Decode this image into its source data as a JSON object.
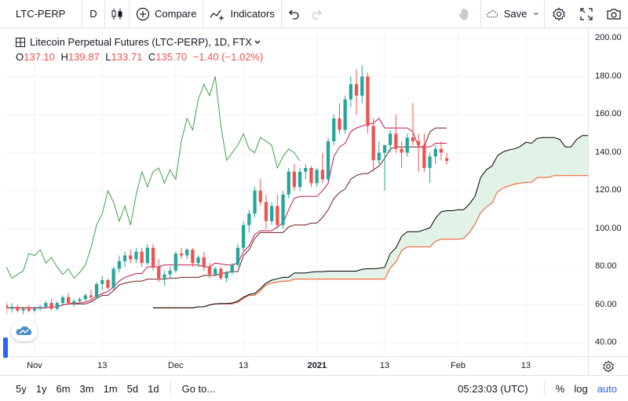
{
  "toolbar": {
    "symbol": "LTC-PERP",
    "interval": "D",
    "compare_label": "Compare",
    "indicators_label": "Indicators",
    "save_label": "Save",
    "icons": [
      "candles-icon",
      "plus-circle-icon",
      "indicators-icon",
      "undo-icon",
      "redo-icon",
      "hand-icon",
      "cloud-icon",
      "chevron-down-icon",
      "gear-icon",
      "fullscreen-icon",
      "camera-icon"
    ]
  },
  "legend": {
    "title": "Litecoin Perpetual Futures (LTC-PERP), 1D, FTX",
    "o_label": "O",
    "o_value": "137.10",
    "h_label": "H",
    "h_value": "139.87",
    "l_label": "L",
    "l_value": "133.71",
    "c_label": "C",
    "c_value": "135.70",
    "change": "−1.40 (−1.02%)"
  },
  "bottom_bar": {
    "ranges": [
      "5y",
      "1y",
      "6m",
      "3m",
      "1m",
      "5d",
      "1d"
    ],
    "goto_label": "Go to...",
    "clock": "05:23:03 (UTC)",
    "percent_label": "%",
    "log_label": "log",
    "auto_label": "auto"
  },
  "colors": {
    "up": "#26a69a",
    "down": "#ef5350",
    "lagging": "#43a047",
    "conversion": "#c2185b",
    "base": "#6d1a1a",
    "span_a": "#000000",
    "span_b": "#f4511e",
    "cloud_bull": "#e3f2e6",
    "cloud_bear": "#fde4e6",
    "accent": "#2962ff"
  },
  "chart_data": {
    "type": "candlestick",
    "indicator": "Ichimoku Cloud",
    "price_axis_ticks": [
      "40.00",
      "60.00",
      "80.00",
      "100.00",
      "120.00",
      "140.00",
      "160.00",
      "180.00",
      "200.00"
    ],
    "time_axis_ticks": [
      "Nov",
      "13",
      "Dec",
      "13",
      "2021",
      "13",
      "Feb",
      "13"
    ],
    "ylim": [
      33,
      205
    ],
    "x_range": [
      0,
      103
    ],
    "candles": [
      {
        "o": 60,
        "h": 62,
        "l": 55,
        "c": 58
      },
      {
        "o": 58,
        "h": 61,
        "l": 56,
        "c": 59
      },
      {
        "o": 59,
        "h": 60,
        "l": 56,
        "c": 57
      },
      {
        "o": 57,
        "h": 59,
        "l": 55,
        "c": 58
      },
      {
        "o": 58,
        "h": 60,
        "l": 56,
        "c": 57
      },
      {
        "o": 57,
        "h": 59,
        "l": 56,
        "c": 58
      },
      {
        "o": 58,
        "h": 60,
        "l": 57,
        "c": 59
      },
      {
        "o": 59,
        "h": 62,
        "l": 58,
        "c": 61
      },
      {
        "o": 61,
        "h": 63,
        "l": 57,
        "c": 58
      },
      {
        "o": 58,
        "h": 62,
        "l": 57,
        "c": 61
      },
      {
        "o": 61,
        "h": 65,
        "l": 60,
        "c": 64
      },
      {
        "o": 64,
        "h": 66,
        "l": 60,
        "c": 61
      },
      {
        "o": 61,
        "h": 63,
        "l": 59,
        "c": 62
      },
      {
        "o": 62,
        "h": 64,
        "l": 61,
        "c": 63
      },
      {
        "o": 63,
        "h": 66,
        "l": 62,
        "c": 65
      },
      {
        "o": 65,
        "h": 68,
        "l": 63,
        "c": 64
      },
      {
        "o": 64,
        "h": 72,
        "l": 63,
        "c": 71
      },
      {
        "o": 71,
        "h": 75,
        "l": 68,
        "c": 73
      },
      {
        "o": 73,
        "h": 74,
        "l": 68,
        "c": 69
      },
      {
        "o": 69,
        "h": 80,
        "l": 68,
        "c": 79
      },
      {
        "o": 79,
        "h": 86,
        "l": 77,
        "c": 83
      },
      {
        "o": 83,
        "h": 88,
        "l": 80,
        "c": 86
      },
      {
        "o": 86,
        "h": 89,
        "l": 82,
        "c": 84
      },
      {
        "o": 84,
        "h": 90,
        "l": 82,
        "c": 88
      },
      {
        "o": 88,
        "h": 90,
        "l": 80,
        "c": 82
      },
      {
        "o": 82,
        "h": 92,
        "l": 81,
        "c": 90
      },
      {
        "o": 90,
        "h": 92,
        "l": 78,
        "c": 80
      },
      {
        "o": 80,
        "h": 84,
        "l": 72,
        "c": 74
      },
      {
        "o": 74,
        "h": 78,
        "l": 70,
        "c": 76
      },
      {
        "o": 76,
        "h": 80,
        "l": 74,
        "c": 78
      },
      {
        "o": 78,
        "h": 88,
        "l": 77,
        "c": 87
      },
      {
        "o": 87,
        "h": 90,
        "l": 84,
        "c": 86
      },
      {
        "o": 86,
        "h": 90,
        "l": 84,
        "c": 89
      },
      {
        "o": 89,
        "h": 90,
        "l": 80,
        "c": 82
      },
      {
        "o": 82,
        "h": 86,
        "l": 80,
        "c": 85
      },
      {
        "o": 85,
        "h": 88,
        "l": 78,
        "c": 80
      },
      {
        "o": 80,
        "h": 82,
        "l": 74,
        "c": 76
      },
      {
        "o": 76,
        "h": 80,
        "l": 75,
        "c": 79
      },
      {
        "o": 79,
        "h": 80,
        "l": 73,
        "c": 74
      },
      {
        "o": 74,
        "h": 78,
        "l": 72,
        "c": 77
      },
      {
        "o": 77,
        "h": 82,
        "l": 76,
        "c": 81
      },
      {
        "o": 81,
        "h": 92,
        "l": 80,
        "c": 90
      },
      {
        "o": 90,
        "h": 104,
        "l": 88,
        "c": 102
      },
      {
        "o": 102,
        "h": 110,
        "l": 98,
        "c": 108
      },
      {
        "o": 108,
        "h": 122,
        "l": 106,
        "c": 120
      },
      {
        "o": 120,
        "h": 126,
        "l": 112,
        "c": 114
      },
      {
        "o": 114,
        "h": 118,
        "l": 100,
        "c": 104
      },
      {
        "o": 104,
        "h": 114,
        "l": 102,
        "c": 112
      },
      {
        "o": 112,
        "h": 118,
        "l": 100,
        "c": 102
      },
      {
        "o": 102,
        "h": 120,
        "l": 100,
        "c": 118
      },
      {
        "o": 118,
        "h": 132,
        "l": 116,
        "c": 130
      },
      {
        "o": 130,
        "h": 134,
        "l": 120,
        "c": 122
      },
      {
        "o": 122,
        "h": 132,
        "l": 120,
        "c": 130
      },
      {
        "o": 130,
        "h": 134,
        "l": 126,
        "c": 132
      },
      {
        "o": 132,
        "h": 133,
        "l": 122,
        "c": 124
      },
      {
        "o": 124,
        "h": 132,
        "l": 122,
        "c": 131
      },
      {
        "o": 131,
        "h": 140,
        "l": 124,
        "c": 126
      },
      {
        "o": 126,
        "h": 148,
        "l": 125,
        "c": 146
      },
      {
        "o": 146,
        "h": 160,
        "l": 144,
        "c": 158
      },
      {
        "o": 158,
        "h": 166,
        "l": 150,
        "c": 152
      },
      {
        "o": 152,
        "h": 170,
        "l": 150,
        "c": 168
      },
      {
        "o": 168,
        "h": 180,
        "l": 164,
        "c": 176
      },
      {
        "o": 176,
        "h": 184,
        "l": 160,
        "c": 170
      },
      {
        "o": 170,
        "h": 186,
        "l": 166,
        "c": 180
      },
      {
        "o": 180,
        "h": 182,
        "l": 150,
        "c": 154
      },
      {
        "o": 154,
        "h": 158,
        "l": 130,
        "c": 136
      },
      {
        "o": 136,
        "h": 146,
        "l": 134,
        "c": 140
      },
      {
        "o": 140,
        "h": 144,
        "l": 120,
        "c": 144
      },
      {
        "o": 144,
        "h": 152,
        "l": 140,
        "c": 150
      },
      {
        "o": 150,
        "h": 160,
        "l": 140,
        "c": 142
      },
      {
        "o": 142,
        "h": 146,
        "l": 132,
        "c": 140
      },
      {
        "o": 140,
        "h": 150,
        "l": 138,
        "c": 148
      },
      {
        "o": 148,
        "h": 166,
        "l": 144,
        "c": 146
      },
      {
        "o": 146,
        "h": 150,
        "l": 130,
        "c": 144
      },
      {
        "o": 144,
        "h": 150,
        "l": 130,
        "c": 132
      },
      {
        "o": 132,
        "h": 140,
        "l": 124,
        "c": 138
      },
      {
        "o": 138,
        "h": 144,
        "l": 134,
        "c": 142
      },
      {
        "o": 142,
        "h": 146,
        "l": 136,
        "c": 140
      },
      {
        "o": 137.1,
        "h": 139.87,
        "l": 133.71,
        "c": 135.7
      }
    ]
  }
}
